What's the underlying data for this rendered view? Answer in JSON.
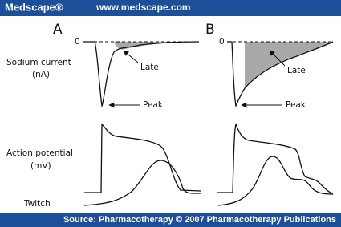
{
  "header": {
    "logo": "Medscape®",
    "url": "www.medscape.com"
  },
  "panels": [
    {
      "label": "A",
      "zero": "0",
      "late": "Late",
      "peak": "Peak"
    },
    {
      "label": "B",
      "zero": "0",
      "late": "Late",
      "peak": "Peak"
    }
  ],
  "rows": [
    {
      "label": "Sodium current",
      "unit": "(nA)"
    },
    {
      "label": "Action potential",
      "unit": "(mV)"
    },
    {
      "label": "Twitch"
    }
  ],
  "footer": {
    "source": "Source: Pharmacotherapy © 2007 Pharmacotherapy Publications"
  }
}
